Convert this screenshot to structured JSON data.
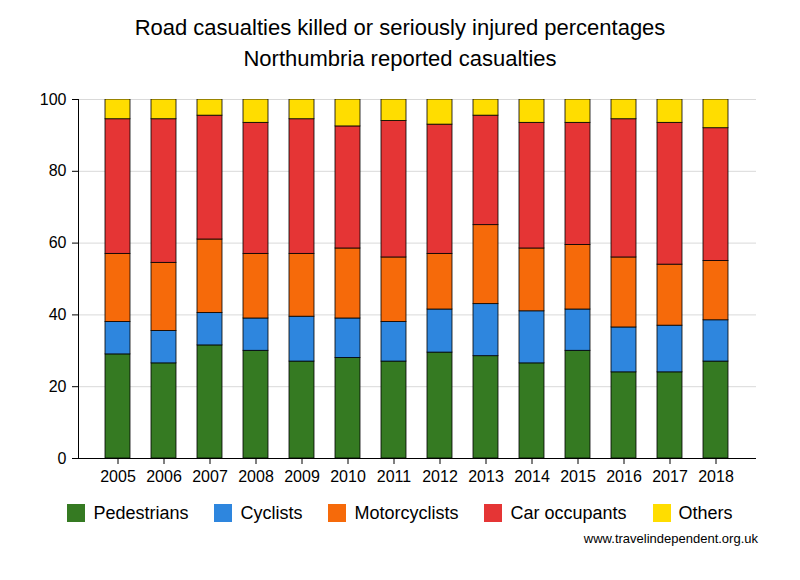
{
  "chart_data": {
    "type": "bar",
    "stacked": true,
    "title": "Road casualties killed or seriously injured percentages",
    "subtitle": "Northumbria reported casualties",
    "caption": "www.travelindependent.org.uk",
    "categories": [
      "2005",
      "2006",
      "2007",
      "2008",
      "2009",
      "2010",
      "2011",
      "2012",
      "2013",
      "2014",
      "2015",
      "2016",
      "2017",
      "2018"
    ],
    "series": [
      {
        "name": "Pedestrians",
        "color": "#357a22",
        "values": [
          29,
          26.5,
          31.5,
          30,
          27,
          28,
          27,
          29.5,
          28.5,
          26.5,
          30,
          24,
          24,
          27
        ]
      },
      {
        "name": "Cyclists",
        "color": "#2e86de",
        "values": [
          9,
          9,
          9,
          9,
          12.5,
          11,
          11,
          12,
          14.5,
          14.5,
          11.5,
          12.5,
          13,
          11.5
        ]
      },
      {
        "name": "Motorcyclists",
        "color": "#f66a0a",
        "values": [
          19,
          19,
          20.5,
          18,
          17.5,
          19.5,
          18,
          15.5,
          22,
          17.5,
          18,
          19.5,
          17,
          16.5
        ]
      },
      {
        "name": "Car occupants",
        "color": "#e53535",
        "values": [
          37.5,
          40,
          34.5,
          36.5,
          37.5,
          34,
          38,
          36,
          30.5,
          35,
          34,
          38.5,
          39.5,
          37
        ]
      },
      {
        "name": "Others",
        "color": "#ffdd00",
        "values": [
          5.5,
          5.5,
          4.5,
          6.5,
          5.5,
          7.5,
          6,
          7,
          4.5,
          6.5,
          6.5,
          5.5,
          6.5,
          8
        ]
      }
    ],
    "ylim": [
      0,
      100
    ],
    "yticks": [
      0,
      20,
      40,
      60,
      80,
      100
    ],
    "grid": true,
    "legend": "bottom"
  }
}
